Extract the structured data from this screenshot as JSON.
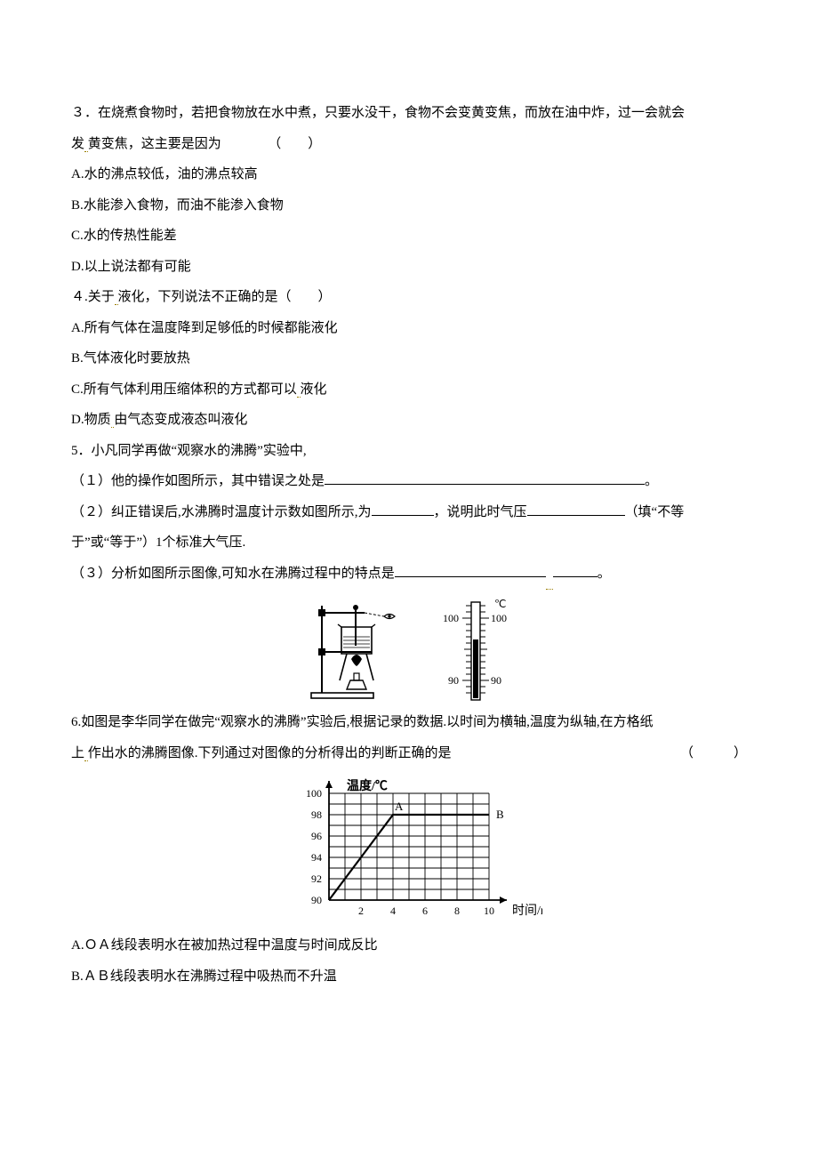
{
  "q3": {
    "stem_a": "３．在烧煮食物时，若把食物放在水中煮，只要水没干，食物不会变黄变焦，而放在油中炸，过一会就会",
    "stem_b": "发",
    "stem_c": "黄变焦，这主要是因为",
    "paren": "（　　）",
    "A": "A.水的沸点较低，油的沸点较高",
    "B": "B.水能渗入食物，而油不能渗入食物",
    "C": "C.水的传热性能差",
    "D": "D.以上说法都有可能"
  },
  "q4": {
    "stem_a": "４.关于",
    "stem_b": "液化，下列说法不正确的是（　　）",
    "A": "A.所有气体在温度降到足够低的时候都能液化",
    "B": "B.气体液化时要放热",
    "C": "C.所有气体利用压缩体积的方式都可以",
    "C2": "液化",
    "D_a": "D.物质",
    "D_b": "由气态变成液态叫液化"
  },
  "q5": {
    "stem": "5．小凡同学再做“观察水的沸腾”实验中,",
    "p1_a": "（１）他的操作如图所示，其中错误之处是",
    "p1_b": "。",
    "p2_a": "（２）纠正错误后,水沸腾时温度计示数如图所示,为",
    "p2_b": "，说明此时气压",
    "p2_c": "（填“不等",
    "p2_d": "于”或“等于”）1个标准大气压.",
    "p3_a": "（３）分析如图所示图像,可知水在沸腾过程中的特点是",
    "p3_b": "。"
  },
  "thermo": {
    "unit": "℃",
    "top_label": "100",
    "bottom_label": "90"
  },
  "q6": {
    "stem_a": "6.如图是李华同学在做完“观察水的沸腾”实验后,根据记录的数据.以时间为横轴,温度为纵轴,在方格纸",
    "stem_b": "上",
    "stem_c": "作出水的沸腾图像.下列通过对图像的分析得出的判断正确的是",
    "paren": "（　　　）",
    "A": "A.ＯＡ线段表明水在被加热过程中温度与时间成反比",
    "B": "B.ＡＢ线段表明水在沸腾过程中吸热而不升温"
  },
  "chart": {
    "y_title": "温度/℃",
    "x_title": "时间/min",
    "y_ticks": [
      "100",
      "98",
      "96",
      "94",
      "92",
      "90"
    ],
    "x_ticks": [
      "2",
      "4",
      "6",
      "8",
      "10"
    ],
    "label_A": "A",
    "label_B": "B",
    "grid_color": "#000000",
    "bg_color": "#ffffff",
    "line_color": "#000000",
    "axis_color": "#000000",
    "font_size": 12,
    "y_range": [
      90,
      100
    ],
    "x_range": [
      0,
      10
    ],
    "series": [
      {
        "x": 0,
        "y": 90
      },
      {
        "x": 4,
        "y": 98
      },
      {
        "x": 10,
        "y": 98
      }
    ]
  }
}
